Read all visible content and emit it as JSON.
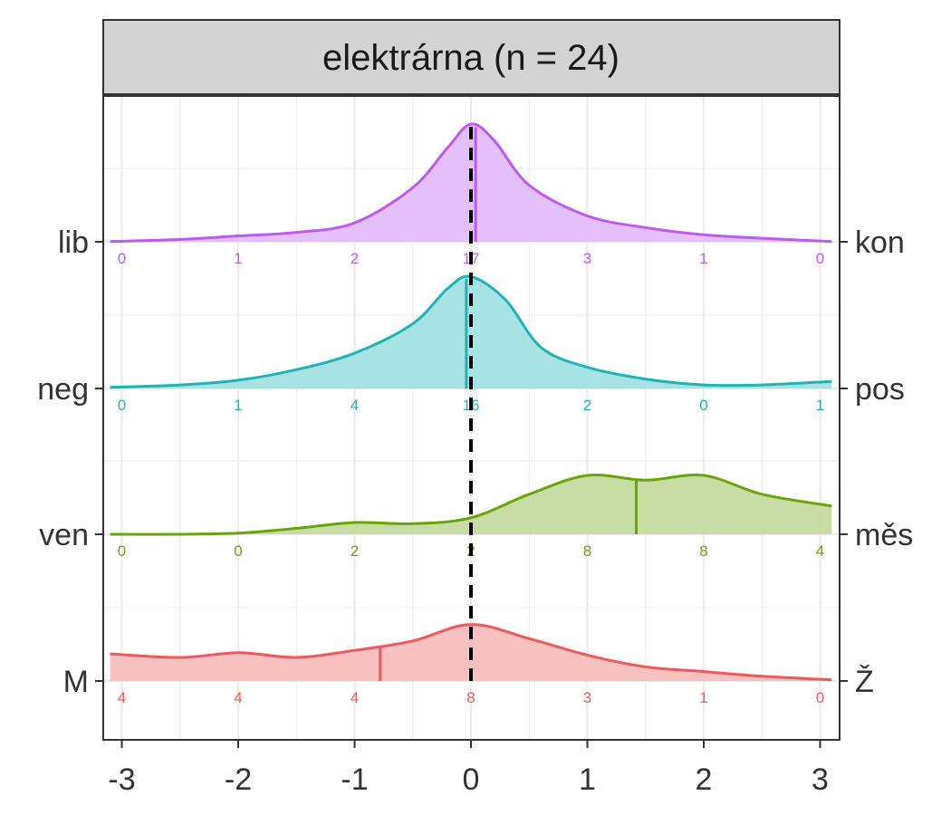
{
  "chart_data": {
    "type": "ridgeline-density",
    "title": "elektrárna (n = 24)",
    "xlim": [
      -3,
      3
    ],
    "x_ticks": [
      "-3",
      "-2",
      "-1",
      "0",
      "1",
      "2",
      "3"
    ],
    "reference_line_x": 0,
    "rows": [
      {
        "left_label": "lib",
        "right_label": "kon",
        "color": "#B85CF2",
        "fill": "#E3BDFB",
        "counts": [
          "0",
          "1",
          "2",
          "17",
          "3",
          "1",
          "0"
        ],
        "mean": 0.04,
        "density": [
          [
            -3.1,
            0.002
          ],
          [
            -2.5,
            0.02
          ],
          [
            -2,
            0.05
          ],
          [
            -1.5,
            0.08
          ],
          [
            -1,
            0.16
          ],
          [
            -0.5,
            0.46
          ],
          [
            -0.2,
            0.8
          ],
          [
            0,
            1.0
          ],
          [
            0.2,
            0.86
          ],
          [
            0.5,
            0.48
          ],
          [
            1,
            0.22
          ],
          [
            1.5,
            0.12
          ],
          [
            2,
            0.06
          ],
          [
            2.5,
            0.03
          ],
          [
            3.1,
            0.002
          ]
        ]
      },
      {
        "left_label": "neg",
        "right_label": "pos",
        "color": "#1FB3B3",
        "fill": "#A3E2E2",
        "counts": [
          "0",
          "1",
          "4",
          "16",
          "2",
          "0",
          "1"
        ],
        "mean": -0.04,
        "density": [
          [
            -3.1,
            0.01
          ],
          [
            -2.5,
            0.03
          ],
          [
            -2,
            0.07
          ],
          [
            -1.5,
            0.16
          ],
          [
            -1,
            0.3
          ],
          [
            -0.5,
            0.55
          ],
          [
            -0.2,
            0.85
          ],
          [
            0,
            0.95
          ],
          [
            0.3,
            0.75
          ],
          [
            0.6,
            0.35
          ],
          [
            1,
            0.18
          ],
          [
            1.5,
            0.08
          ],
          [
            2,
            0.03
          ],
          [
            2.5,
            0.03
          ],
          [
            3.1,
            0.06
          ]
        ]
      },
      {
        "left_label": "ven",
        "right_label": "měs",
        "color": "#6AA30B",
        "fill": "#C5DB9E",
        "counts": [
          "0",
          "0",
          "2",
          "2",
          "8",
          "8",
          "4"
        ],
        "mean": 1.42,
        "density": [
          [
            -3.1,
            0.0
          ],
          [
            -2.5,
            0.0
          ],
          [
            -2,
            0.01
          ],
          [
            -1.5,
            0.05
          ],
          [
            -1,
            0.1
          ],
          [
            -0.5,
            0.09
          ],
          [
            0,
            0.14
          ],
          [
            0.5,
            0.34
          ],
          [
            1,
            0.5
          ],
          [
            1.5,
            0.46
          ],
          [
            2,
            0.5
          ],
          [
            2.5,
            0.34
          ],
          [
            3.1,
            0.24
          ]
        ]
      },
      {
        "left_label": "M",
        "right_label": "Ž",
        "color": "#EC5A5A",
        "fill": "#F8BDBA",
        "counts": [
          "4",
          "4",
          "4",
          "8",
          "3",
          "1",
          "0"
        ],
        "mean": -0.78,
        "density": [
          [
            -3.1,
            0.23
          ],
          [
            -2.5,
            0.2
          ],
          [
            -2,
            0.24
          ],
          [
            -1.5,
            0.2
          ],
          [
            -1,
            0.26
          ],
          [
            -0.5,
            0.34
          ],
          [
            0,
            0.48
          ],
          [
            0.5,
            0.36
          ],
          [
            1,
            0.22
          ],
          [
            1.5,
            0.12
          ],
          [
            2,
            0.08
          ],
          [
            2.5,
            0.04
          ],
          [
            3.1,
            0.01
          ]
        ]
      }
    ]
  }
}
